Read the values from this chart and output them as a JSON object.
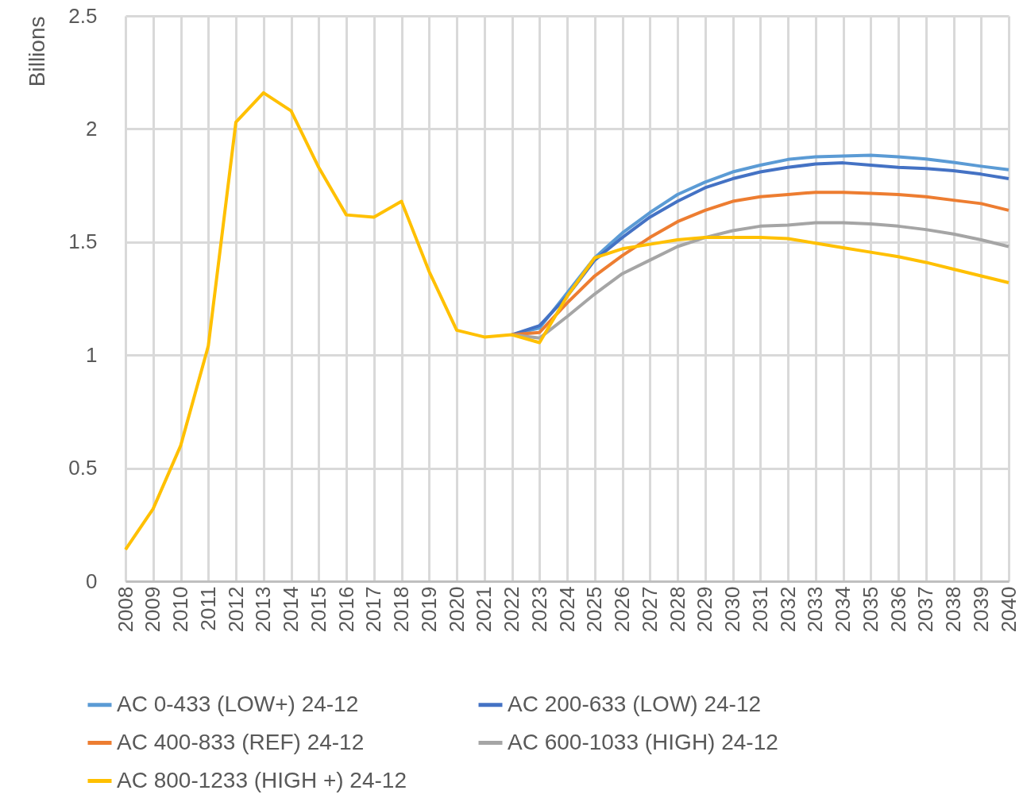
{
  "chart_data": {
    "type": "line",
    "ylabel": "Billions",
    "categories": [
      "2008",
      "2009",
      "2010",
      "2011",
      "2012",
      "2013",
      "2014",
      "2015",
      "2016",
      "2017",
      "2018",
      "2019",
      "2020",
      "2021",
      "2022",
      "2023",
      "2024",
      "2025",
      "2026",
      "2027",
      "2028",
      "2029",
      "2030",
      "2031",
      "2032",
      "2033",
      "2034",
      "2035",
      "2036",
      "2037",
      "2038",
      "2039",
      "2040"
    ],
    "ylim": [
      0,
      2.5
    ],
    "yticks": [
      0,
      0.5,
      1,
      1.5,
      2,
      2.5
    ],
    "grid": true,
    "legend": "bottom",
    "line_style": "solid",
    "series": [
      {
        "name": "AC 0-433 (LOW+) 24-12",
        "color": "#5b9bd5",
        "values": [
          null,
          null,
          null,
          null,
          null,
          null,
          null,
          null,
          null,
          null,
          null,
          null,
          null,
          null,
          1.09,
          1.12,
          1.275,
          1.43,
          1.54,
          1.63,
          1.71,
          1.765,
          1.81,
          1.84,
          1.865,
          1.877,
          1.88,
          1.884,
          1.877,
          1.867,
          1.852,
          1.835,
          1.82
        ]
      },
      {
        "name": "AC 200-633 (LOW) 24-12",
        "color": "#4472c4",
        "values": [
          null,
          null,
          null,
          null,
          null,
          null,
          null,
          null,
          null,
          null,
          null,
          null,
          null,
          null,
          1.09,
          1.13,
          1.26,
          1.42,
          1.52,
          1.61,
          1.68,
          1.74,
          1.78,
          1.81,
          1.83,
          1.845,
          1.85,
          1.84,
          1.83,
          1.825,
          1.815,
          1.8,
          1.78
        ]
      },
      {
        "name": "AC 400-833 (REF) 24-12",
        "color": "#ed7d31",
        "values": [
          null,
          null,
          null,
          null,
          null,
          null,
          null,
          null,
          null,
          null,
          null,
          null,
          null,
          null,
          1.09,
          1.1,
          1.23,
          1.35,
          1.44,
          1.52,
          1.59,
          1.64,
          1.68,
          1.7,
          1.71,
          1.72,
          1.72,
          1.715,
          1.71,
          1.7,
          1.685,
          1.67,
          1.64
        ]
      },
      {
        "name": "AC 600-1033 (HIGH) 24-12",
        "color": "#a5a5a5",
        "values": [
          null,
          null,
          null,
          null,
          null,
          null,
          null,
          null,
          null,
          null,
          null,
          null,
          null,
          null,
          1.09,
          1.075,
          1.17,
          1.27,
          1.36,
          1.42,
          1.48,
          1.52,
          1.55,
          1.57,
          1.575,
          1.585,
          1.585,
          1.58,
          1.57,
          1.555,
          1.535,
          1.51,
          1.48
        ]
      },
      {
        "name": "AC 800-1233 (HIGH +) 24-12",
        "color": "#ffc000",
        "values": [
          0.14,
          0.32,
          0.6,
          1.04,
          2.03,
          2.16,
          2.08,
          1.83,
          1.62,
          1.61,
          1.68,
          1.37,
          1.11,
          1.08,
          1.09,
          1.055,
          1.26,
          1.43,
          1.47,
          1.49,
          1.51,
          1.52,
          1.52,
          1.52,
          1.515,
          1.495,
          1.475,
          1.455,
          1.435,
          1.41,
          1.38,
          1.35,
          1.32
        ]
      }
    ]
  }
}
